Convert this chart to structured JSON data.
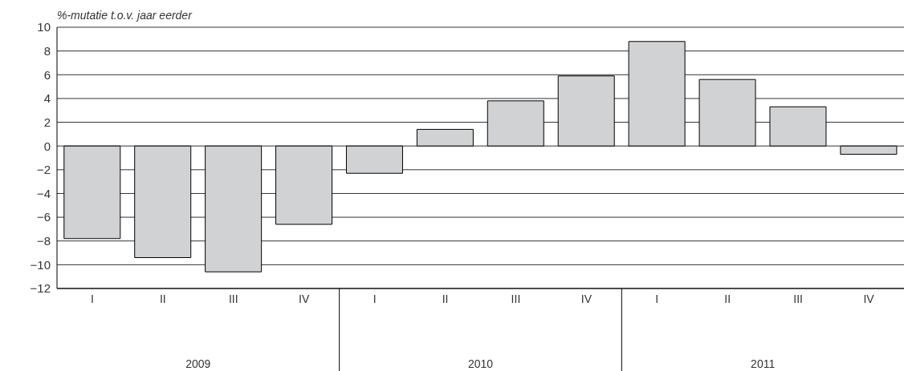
{
  "chart_data": {
    "type": "bar",
    "ylabel": "%-mutatie t.o.v. jaar eerder",
    "categories": [
      "I",
      "II",
      "III",
      "IV",
      "I",
      "II",
      "III",
      "IV",
      "I",
      "II",
      "III",
      "IV"
    ],
    "values": [
      -7.8,
      -9.4,
      -10.6,
      -6.6,
      -2.3,
      1.4,
      3.8,
      5.9,
      8.8,
      5.6,
      3.3,
      -0.7
    ],
    "color": "#d1d2d4",
    "annotations": [
      "2009",
      "2010",
      "2011"
    ],
    "ylim": [
      -12,
      10
    ],
    "yticks": [
      -12,
      -10,
      -8,
      -6,
      -4,
      -2,
      0,
      2,
      4,
      6,
      8,
      10
    ],
    "grid": "y",
    "legend": false
  }
}
